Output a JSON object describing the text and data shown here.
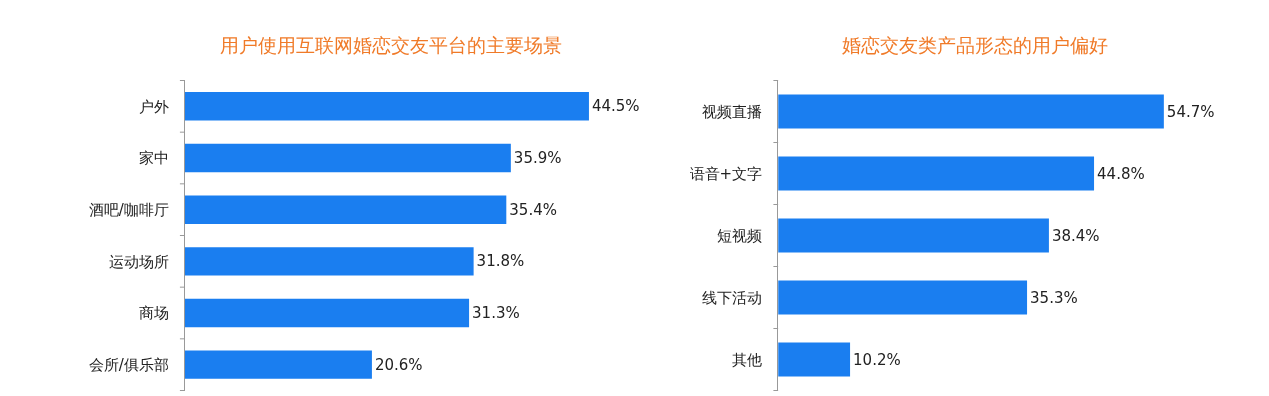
{
  "chart_data": [
    {
      "type": "bar",
      "orientation": "horizontal",
      "title": "用户使用互联网婚恋交友平台的主要场景",
      "categories": [
        "户外",
        "家中",
        "酒吧/咖啡厅",
        "运动场所",
        "商场",
        "会所/俱乐部"
      ],
      "values": [
        44.5,
        35.9,
        35.4,
        31.8,
        31.3,
        20.6
      ],
      "value_labels": [
        "44.5%",
        "35.9%",
        "35.4%",
        "31.8%",
        "31.3%",
        "20.6%"
      ],
      "color": "#1a7ef0",
      "legend": false,
      "tick_labels": "y"
    },
    {
      "type": "bar",
      "orientation": "horizontal",
      "title": "婚恋交友类产品形态的用户偏好",
      "categories": [
        "视频直播",
        "语音+文字",
        "短视频",
        "线下活动",
        "其他"
      ],
      "values": [
        54.7,
        44.8,
        38.4,
        35.3,
        10.2
      ],
      "value_labels": [
        "54.7%",
        "44.8%",
        "38.4%",
        "35.3%",
        "10.2%"
      ],
      "color": "#1a7ef0",
      "legend": false,
      "tick_labels": "y"
    }
  ]
}
